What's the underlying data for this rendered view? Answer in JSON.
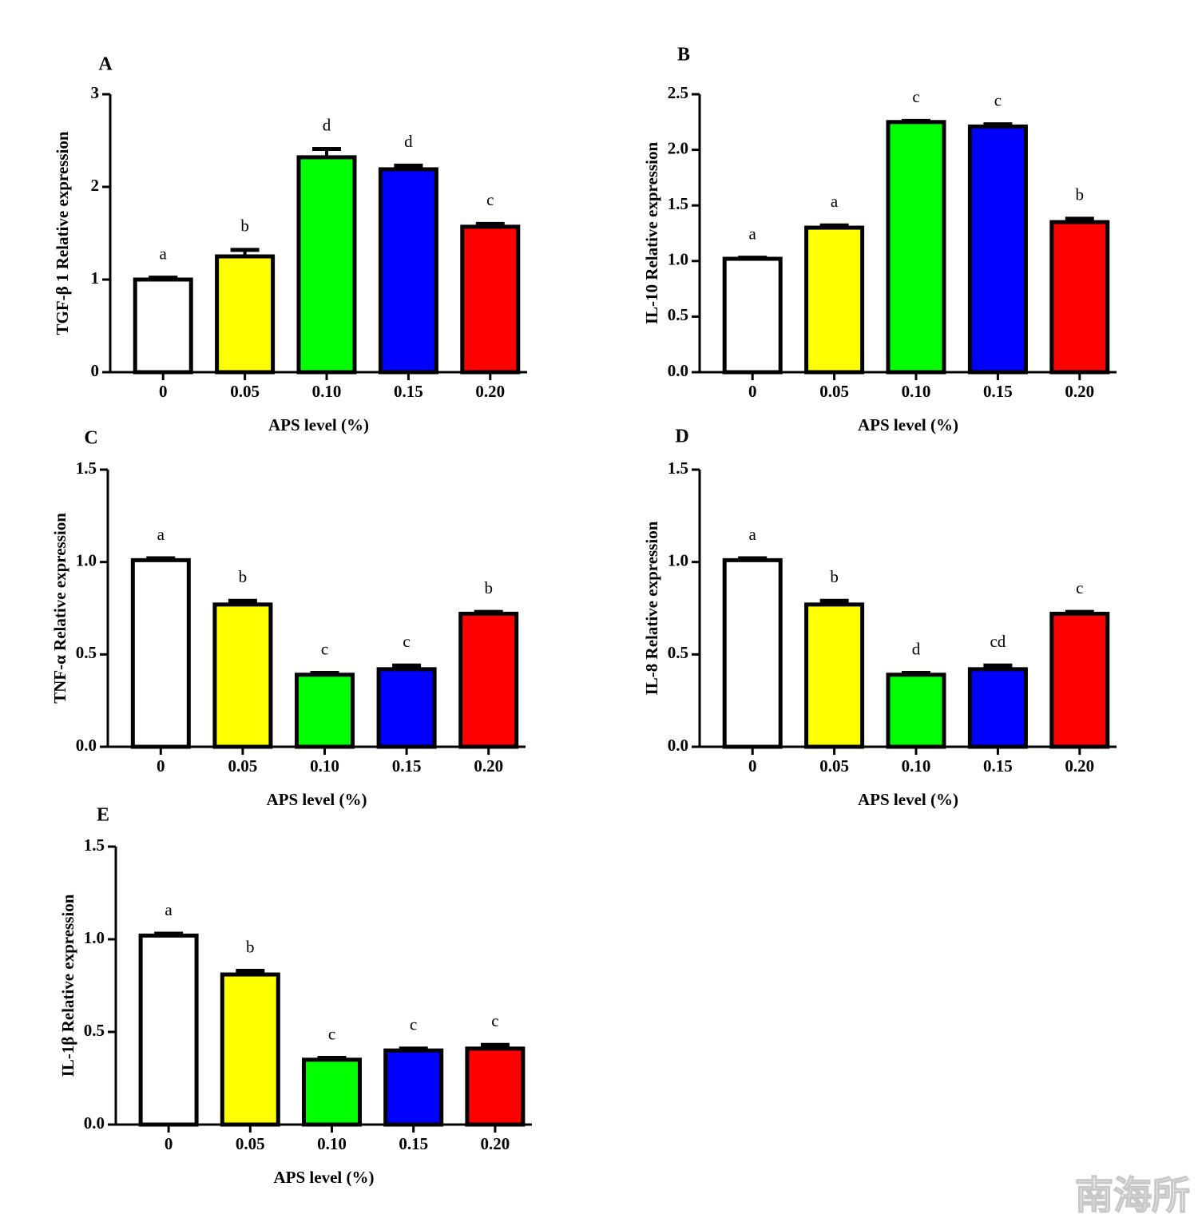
{
  "chart_data": [
    {
      "type": "bar",
      "panel": "A",
      "ylabel": "TGF-β 1 Relative expression",
      "xlabel": "APS level (%)",
      "categories": [
        "0",
        "0.05",
        "0.10",
        "0.15",
        "0.20"
      ],
      "values": [
        1.0,
        1.25,
        2.32,
        2.19,
        1.57
      ],
      "errors": [
        0.02,
        0.07,
        0.09,
        0.04,
        0.03
      ],
      "letters": [
        "a",
        "b",
        "d",
        "d",
        "c"
      ],
      "colors": [
        "#ffffff",
        "#ffff00",
        "#00ff00",
        "#0000ff",
        "#ff0000"
      ],
      "ylim": [
        0,
        3
      ],
      "yticks": [
        0,
        1,
        2,
        3
      ]
    },
    {
      "type": "bar",
      "panel": "B",
      "ylabel": "IL-10 Relative expression",
      "xlabel": "APS level (%)",
      "categories": [
        "0",
        "0.05",
        "0.10",
        "0.15",
        "0.20"
      ],
      "values": [
        1.02,
        1.3,
        2.25,
        2.21,
        1.35
      ],
      "errors": [
        0.01,
        0.02,
        0.01,
        0.02,
        0.03
      ],
      "letters": [
        "a",
        "a",
        "c",
        "c",
        "b"
      ],
      "colors": [
        "#ffffff",
        "#ffff00",
        "#00ff00",
        "#0000ff",
        "#ff0000"
      ],
      "ylim": [
        0,
        2.5
      ],
      "yticks": [
        {
          "value": 0,
          "label": "0.0"
        },
        0.5,
        {
          "value": 1,
          "label": "1.0"
        },
        1.5,
        {
          "value": 2,
          "label": "2.0"
        },
        2.5
      ]
    },
    {
      "type": "bar",
      "panel": "C",
      "ylabel": "TNF-α  Relative expression",
      "xlabel": "APS level (%)",
      "categories": [
        "0",
        "0.05",
        "0.10",
        "0.15",
        "0.20"
      ],
      "values": [
        1.01,
        0.77,
        0.39,
        0.42,
        0.72
      ],
      "errors": [
        0.01,
        0.02,
        0.01,
        0.02,
        0.01
      ],
      "letters": [
        "a",
        "b",
        "c",
        "c",
        "b"
      ],
      "colors": [
        "#ffffff",
        "#ffff00",
        "#00ff00",
        "#0000ff",
        "#ff0000"
      ],
      "ylim": [
        0,
        1.5
      ],
      "yticks": [
        {
          "value": 0,
          "label": "0.0"
        },
        0.5,
        {
          "value": 1,
          "label": "1.0"
        },
        1.5
      ]
    },
    {
      "type": "bar",
      "panel": "D",
      "ylabel": "IL-8 Relative expression",
      "xlabel": "APS level (%)",
      "categories": [
        "0",
        "0.05",
        "0.10",
        "0.15",
        "0.20"
      ],
      "values": [
        1.01,
        0.77,
        0.39,
        0.42,
        0.72
      ],
      "errors": [
        0.01,
        0.02,
        0.01,
        0.02,
        0.01
      ],
      "letters": [
        "a",
        "b",
        "d",
        "cd",
        "c"
      ],
      "colors": [
        "#ffffff",
        "#ffff00",
        "#00ff00",
        "#0000ff",
        "#ff0000"
      ],
      "ylim": [
        0,
        1.5
      ],
      "yticks": [
        {
          "value": 0,
          "label": "0.0"
        },
        0.5,
        {
          "value": 1,
          "label": "1.0"
        },
        1.5
      ]
    },
    {
      "type": "bar",
      "panel": "E",
      "ylabel": "IL-1β  Relative expression",
      "xlabel": "APS level (%)",
      "categories": [
        "0",
        "0.05",
        "0.10",
        "0.15",
        "0.20"
      ],
      "values": [
        1.02,
        0.81,
        0.35,
        0.4,
        0.41
      ],
      "errors": [
        0.01,
        0.02,
        0.01,
        0.01,
        0.02
      ],
      "letters": [
        "a",
        "b",
        "c",
        "c",
        "c"
      ],
      "colors": [
        "#ffffff",
        "#ffff00",
        "#00ff00",
        "#0000ff",
        "#ff0000"
      ],
      "ylim": [
        0,
        1.5
      ],
      "yticks": [
        {
          "value": 0,
          "label": "0.0"
        },
        0.5,
        {
          "value": 1,
          "label": "1.0"
        },
        1.5
      ]
    }
  ],
  "watermark": "南海所"
}
